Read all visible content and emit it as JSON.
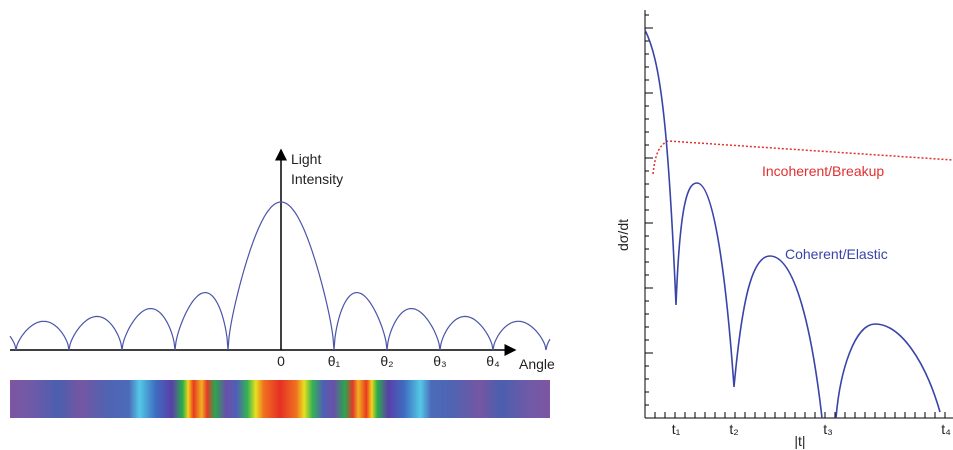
{
  "left_panel": {
    "y_label_lines": [
      "Light",
      "Intensity"
    ],
    "x_label": "Angle",
    "ticks": [
      "0",
      "θ₁",
      "θ₂",
      "θ₃",
      "θ₄"
    ]
  },
  "right_panel": {
    "y_label": "dσ/dt",
    "x_label": "|t|",
    "ticks": [
      "t₁",
      "t₂",
      "t₃",
      "t₄"
    ],
    "incoherent_label": "Incoherent/Breakup",
    "coherent_label": "Coherent/Elastic"
  }
}
